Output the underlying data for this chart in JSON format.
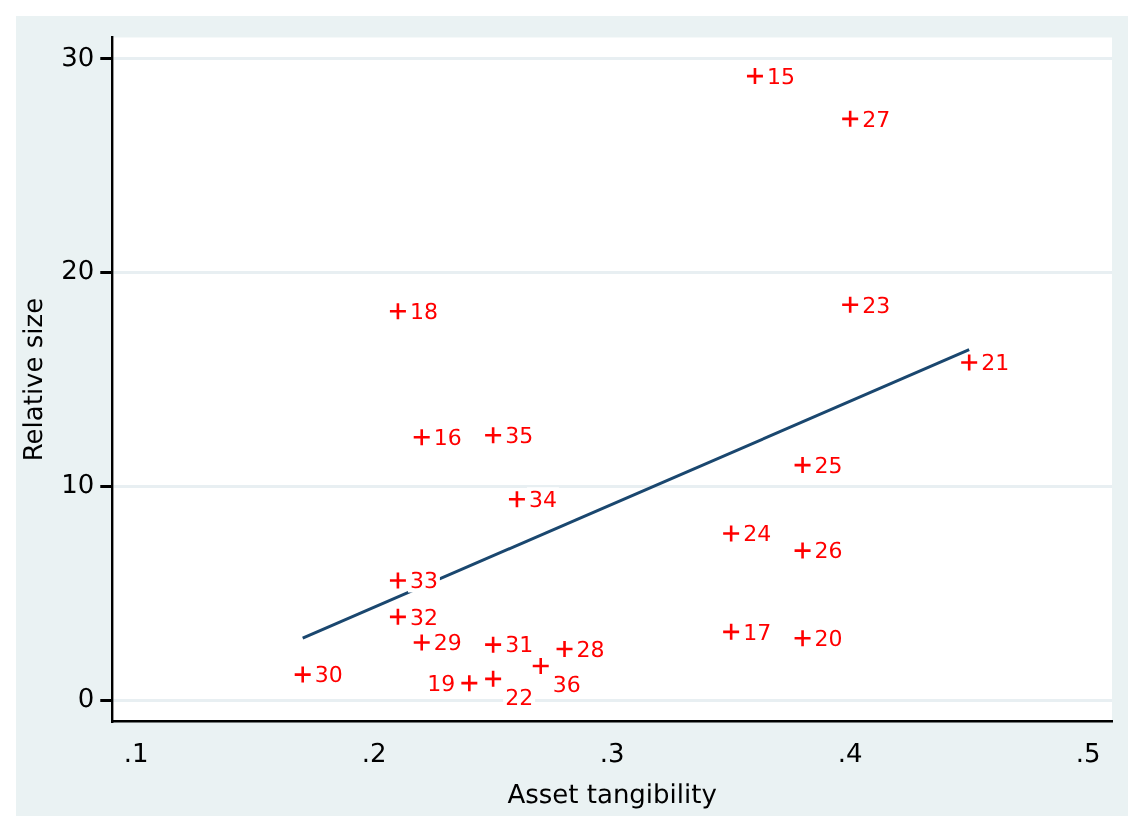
{
  "chart_data": {
    "type": "scatter",
    "xlabel": "Asset tangibility",
    "ylabel": "Relative size",
    "xlim": [
      0.09,
      0.51
    ],
    "ylim": [
      -1,
      31
    ],
    "xticks": [
      {
        "value": 0.1,
        "label": ".1"
      },
      {
        "value": 0.2,
        "label": ".2"
      },
      {
        "value": 0.3,
        "label": ".3"
      },
      {
        "value": 0.4,
        "label": ".4"
      },
      {
        "value": 0.5,
        "label": ".5"
      }
    ],
    "yticks": [
      0,
      10,
      20,
      30
    ],
    "grid": "y",
    "legend": false,
    "marker": "cross",
    "annotations": [
      {
        "text": "15",
        "x": 0.36,
        "y": 29.2
      },
      {
        "text": "27",
        "x": 0.4,
        "y": 27.2
      },
      {
        "text": "23",
        "x": 0.4,
        "y": 18.5
      },
      {
        "text": "21",
        "x": 0.45,
        "y": 15.8
      },
      {
        "text": "18",
        "x": 0.21,
        "y": 18.2
      },
      {
        "text": "16",
        "x": 0.22,
        "y": 12.3
      },
      {
        "text": "35",
        "x": 0.25,
        "y": 12.4
      },
      {
        "text": "34",
        "x": 0.26,
        "y": 9.4
      },
      {
        "text": "33",
        "x": 0.21,
        "y": 5.6
      },
      {
        "text": "32",
        "x": 0.21,
        "y": 3.9
      },
      {
        "text": "29",
        "x": 0.22,
        "y": 2.7
      },
      {
        "text": "31",
        "x": 0.25,
        "y": 2.6
      },
      {
        "text": "28",
        "x": 0.28,
        "y": 2.4
      },
      {
        "text": "36",
        "x": 0.27,
        "y": 1.6
      },
      {
        "text": "22",
        "x": 0.25,
        "y": 1.0
      },
      {
        "text": "19",
        "x": 0.24,
        "y": 0.8
      },
      {
        "text": "30",
        "x": 0.17,
        "y": 1.2
      },
      {
        "text": "25",
        "x": 0.38,
        "y": 11.0
      },
      {
        "text": "24",
        "x": 0.35,
        "y": 7.8
      },
      {
        "text": "26",
        "x": 0.38,
        "y": 7.0
      },
      {
        "text": "17",
        "x": 0.35,
        "y": 3.2
      },
      {
        "text": "20",
        "x": 0.38,
        "y": 2.9
      }
    ],
    "series": [
      {
        "color": "#ff0000",
        "x": [
          0.36,
          0.4,
          0.4,
          0.45,
          0.21,
          0.22,
          0.25,
          0.26,
          0.21,
          0.21,
          0.22,
          0.25,
          0.28,
          0.27,
          0.25,
          0.24,
          0.17,
          0.38,
          0.35,
          0.38,
          0.35,
          0.38
        ],
        "values": [
          29.2,
          27.2,
          18.5,
          15.8,
          18.2,
          12.3,
          12.4,
          9.4,
          5.6,
          3.9,
          2.7,
          2.6,
          2.4,
          1.6,
          1.0,
          0.8,
          1.2,
          11.0,
          7.8,
          7.0,
          3.2,
          2.9
        ]
      },
      {
        "type": "line",
        "color": "#1a476f",
        "marker": "none",
        "x": [
          0.17,
          0.45
        ],
        "values": [
          2.9,
          16.4
        ]
      }
    ]
  }
}
